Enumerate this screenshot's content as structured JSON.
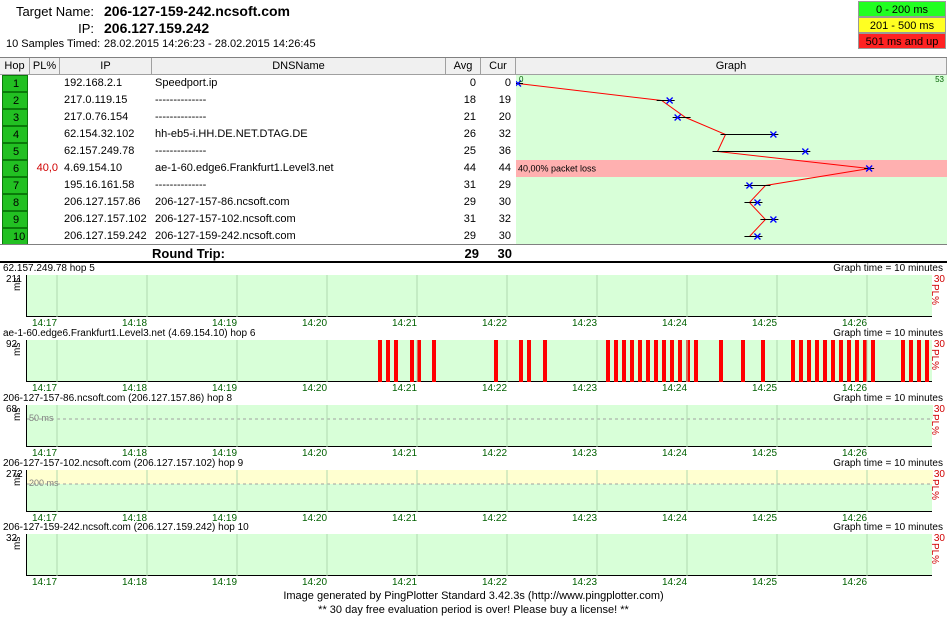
{
  "header": {
    "target_label": "Target Name:",
    "target_value": "206-127-159-242.ncsoft.com",
    "ip_label": "IP:",
    "ip_value": "206.127.159.242",
    "samples_label": "10 Samples Timed:",
    "samples_value": "28.02.2015 14:26:23 - 28.02.2015 14:26:45"
  },
  "legend": [
    {
      "label": "0 - 200 ms",
      "color": "#22ff22"
    },
    {
      "label": "201 - 500 ms",
      "color": "#ffff22"
    },
    {
      "label": "501 ms and up",
      "color": "#ff2222"
    }
  ],
  "columns": {
    "hop": "Hop",
    "pl": "PL%",
    "ip": "IP",
    "dns": "DNSName",
    "avg": "Avg",
    "cur": "Cur",
    "graph": "Graph"
  },
  "graph": {
    "min_label": "0",
    "max_label": "53",
    "max_ms": 53
  },
  "hops": [
    {
      "hop": "1",
      "pl": "",
      "ip": "192.168.2.1",
      "dns": "Speedport.ip",
      "avg": "0",
      "cur": "0",
      "avg_ms": 0,
      "cur_ms": 0
    },
    {
      "hop": "2",
      "pl": "",
      "ip": "217.0.119.15",
      "dns": "--------------",
      "avg": "18",
      "cur": "19",
      "avg_ms": 18,
      "cur_ms": 19
    },
    {
      "hop": "3",
      "pl": "",
      "ip": "217.0.76.154",
      "dns": "--------------",
      "avg": "21",
      "cur": "20",
      "avg_ms": 21,
      "cur_ms": 20
    },
    {
      "hop": "4",
      "pl": "",
      "ip": "62.154.32.102",
      "dns": "hh-eb5-i.HH.DE.NET.DTAG.DE",
      "avg": "26",
      "cur": "32",
      "avg_ms": 26,
      "cur_ms": 32
    },
    {
      "hop": "5",
      "pl": "",
      "ip": "62.157.249.78",
      "dns": "--------------",
      "avg": "25",
      "cur": "36",
      "avg_ms": 25,
      "cur_ms": 36
    },
    {
      "hop": "6",
      "pl": "40,0",
      "ip": "4.69.154.10",
      "dns": "ae-1-60.edge6.Frankfurt1.Level3.net",
      "avg": "44",
      "cur": "44",
      "avg_ms": 44,
      "cur_ms": 44,
      "loss_note": "40,00% packet loss"
    },
    {
      "hop": "7",
      "pl": "",
      "ip": "195.16.161.58",
      "dns": "--------------",
      "avg": "31",
      "cur": "29",
      "avg_ms": 31,
      "cur_ms": 29
    },
    {
      "hop": "8",
      "pl": "",
      "ip": "206.127.157.86",
      "dns": "206-127-157-86.ncsoft.com",
      "avg": "29",
      "cur": "30",
      "avg_ms": 29,
      "cur_ms": 30
    },
    {
      "hop": "9",
      "pl": "",
      "ip": "206.127.157.102",
      "dns": "206-127-157-102.ncsoft.com",
      "avg": "31",
      "cur": "32",
      "avg_ms": 31,
      "cur_ms": 32
    },
    {
      "hop": "10",
      "pl": "",
      "ip": "206.127.159.242",
      "dns": "206-127-159-242.ncsoft.com",
      "avg": "29",
      "cur": "30",
      "avg_ms": 29,
      "cur_ms": 30
    }
  ],
  "round_trip": {
    "label": "Round Trip:",
    "avg": "29",
    "cur": "30"
  },
  "time_labels": [
    "14:17",
    "14:18",
    "14:19",
    "14:20",
    "14:21",
    "14:22",
    "14:23",
    "14:24",
    "14:25",
    "14:26"
  ],
  "charts": [
    {
      "title": "62.157.249.78 hop 5",
      "time": "Graph time = 10 minutes",
      "ymax": "211",
      "unit": "ms",
      "pl_max": "30",
      "pl_unit": "PL%",
      "ref_label": ""
    },
    {
      "title": "ae-1-60.edge6.Frankfurt1.Level3.net (4.69.154.10) hop 6",
      "time": "Graph time = 10 minutes",
      "ymax": "92",
      "unit": "ms",
      "pl_max": "30",
      "pl_unit": "PL%",
      "ref_label": ""
    },
    {
      "title": "206-127-157-86.ncsoft.com (206.127.157.86) hop 8",
      "time": "Graph time = 10 minutes",
      "ymax": "68",
      "unit": "ms",
      "pl_max": "30",
      "pl_unit": "PL%",
      "ref_label": "50 ms"
    },
    {
      "title": "206-127-157-102.ncsoft.com (206.127.157.102) hop 9",
      "time": "Graph time = 10 minutes",
      "ymax": "272",
      "unit": "ms",
      "pl_max": "30",
      "pl_unit": "PL%",
      "ref_label": "200 ms"
    },
    {
      "title": "206-127-159-242.ncsoft.com (206.127.159.242) hop 10",
      "time": "Graph time = 10 minutes",
      "ymax": "32",
      "unit": "ms",
      "pl_max": "30",
      "pl_unit": "PL%",
      "ref_label": ""
    }
  ],
  "footer": {
    "line1": "Image generated by PingPlotter Standard 3.42.3s (http://www.pingplotter.com)",
    "line2": "** 30 day free evaluation period is over!  Please buy a license! **"
  }
}
